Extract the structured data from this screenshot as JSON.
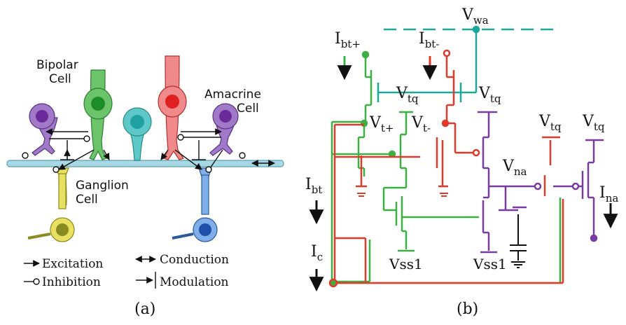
{
  "panel_a": {
    "caption": "(a)",
    "cells": {
      "bipolar_line1": "Bipolar",
      "bipolar_line2": "Cell",
      "amacrine_line1": "Amacrine",
      "amacrine_line2": "Cell",
      "ganglion_line1": "Ganglion",
      "ganglion_line2": "Cell"
    },
    "legend": {
      "excitation": "Excitation",
      "inhibition": "Inhibition",
      "conduction": "Conduction",
      "modulation": "Modulation"
    },
    "colors": {
      "bipolar": "#4daf4a",
      "amacrine_purple": "#9b59b6",
      "pink": "#f08080",
      "red": "#e02020",
      "teal": "#48c0c0",
      "yellow": "#e8e060",
      "blue": "#5b8fd8",
      "membrane": "#9ad0e0"
    }
  },
  "panel_b": {
    "caption": "(b)",
    "labels": {
      "vwa": "V",
      "vwa_sub": "wa",
      "ibt_plus": "I",
      "ibt_plus_sub": "bt+",
      "ibt_minus": "I",
      "ibt_minus_sub": "bt-",
      "vtq": "V",
      "vtq_sub": "tq",
      "vt_plus": "V",
      "vt_plus_sub": "t+",
      "vt_minus": "V",
      "vt_minus_sub": "t-",
      "vna": "V",
      "vna_sub": "na",
      "ibt": "I",
      "ibt_sub": "bt",
      "ic": "I",
      "ic_sub": "c",
      "ina": "I",
      "ina_sub": "na",
      "vss1": "Vss1"
    },
    "colors": {
      "green": "#3cb043",
      "red": "#e03a2a",
      "teal": "#1aa89a",
      "purple": "#7a3aa0",
      "black": "#111111"
    }
  }
}
